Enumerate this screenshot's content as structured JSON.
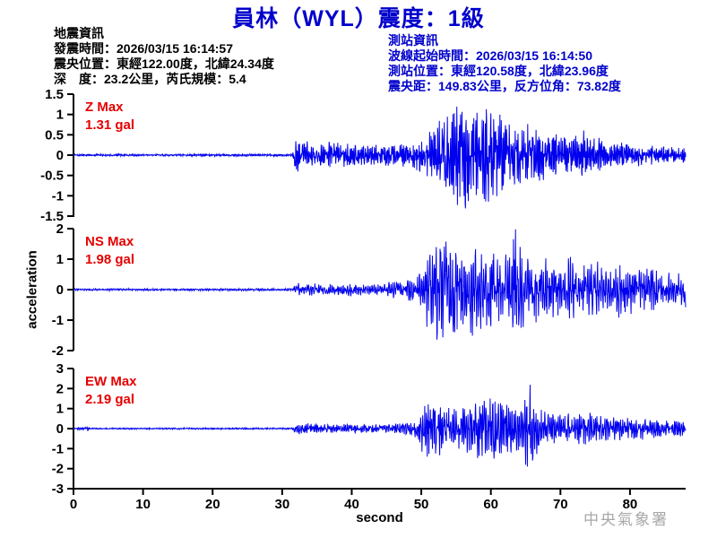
{
  "title": "員林（WYL）震度：1級",
  "event_info": {
    "heading": "地震資訊",
    "lines": [
      "發震時間：2026/03/15 16:14:57",
      "震央位置：東經122.00度，北緯24.34度",
      "深　度：23.2公里，芮氏規模：5.4"
    ]
  },
  "station_info": {
    "heading": "測站資訊",
    "lines": [
      "波線起始時間：2026/03/15 16:14:50",
      "測站位置：東經120.58度，北緯23.96度",
      "震央距：149.83公里，反方位角：73.82度"
    ]
  },
  "watermark": "中央氣象署",
  "colors": {
    "title_blue": "#0000cc",
    "trace_blue": "#0000ee",
    "label_red": "#e60000",
    "axis_black": "#000000",
    "watermark_gray": "#a8a8a8"
  },
  "chart_data": {
    "type": "line",
    "title": "員林（WYL）震度：1級",
    "xlabel": "second",
    "ylabel": "acceleration",
    "x_range": [
      0,
      88
    ],
    "x_ticks": [
      0,
      10,
      20,
      30,
      40,
      50,
      60,
      70,
      80
    ],
    "grid": false,
    "legend": "none",
    "series": [
      {
        "name": "Z",
        "max_label": "Z Max",
        "max_value_label": "1.31 gal",
        "max": 1.31,
        "ylim": [
          -1.5,
          1.5
        ],
        "yticks": [
          1.5,
          1,
          0.5,
          0,
          -0.5,
          -1,
          -1.5
        ],
        "p_arrival_s": 31.5,
        "s_arrival_s": 49.5,
        "envelope": [
          [
            0,
            0.025
          ],
          [
            6,
            0.025
          ],
          [
            6.3,
            0.1
          ],
          [
            6.6,
            0.025
          ],
          [
            31.5,
            0.03
          ],
          [
            31.9,
            0.42
          ],
          [
            34,
            0.3
          ],
          [
            38,
            0.33
          ],
          [
            41,
            0.25
          ],
          [
            45,
            0.25
          ],
          [
            48,
            0.3
          ],
          [
            49.5,
            0.5
          ],
          [
            52,
            0.85
          ],
          [
            54,
            1.05
          ],
          [
            56,
            1.31
          ],
          [
            58,
            1.1
          ],
          [
            60,
            1.2
          ],
          [
            62,
            0.85
          ],
          [
            64,
            0.7
          ],
          [
            66,
            0.75
          ],
          [
            68,
            0.55
          ],
          [
            70,
            0.5
          ],
          [
            73,
            0.62
          ],
          [
            76,
            0.38
          ],
          [
            79,
            0.3
          ],
          [
            82,
            0.25
          ],
          [
            85,
            0.2
          ],
          [
            88,
            0.18
          ]
        ],
        "seed": 12345,
        "freq_hz": 5
      },
      {
        "name": "NS",
        "max_label": "NS Max",
        "max_value_label": "1.98 gal",
        "max": 1.98,
        "ylim": [
          -2,
          2
        ],
        "yticks": [
          2,
          1,
          0,
          -1,
          -2
        ],
        "p_arrival_s": 31.5,
        "s_arrival_s": 49.5,
        "envelope": [
          [
            0,
            0.03
          ],
          [
            31.5,
            0.035
          ],
          [
            32,
            0.2
          ],
          [
            36,
            0.15
          ],
          [
            40,
            0.18
          ],
          [
            44,
            0.15
          ],
          [
            46,
            0.25
          ],
          [
            48,
            0.3
          ],
          [
            49.5,
            0.45
          ],
          [
            51.5,
            1.45
          ],
          [
            53,
            1.5
          ],
          [
            55,
            1.3
          ],
          [
            56.5,
            1.5
          ],
          [
            58,
            1.1
          ],
          [
            60,
            1.25
          ],
          [
            62,
            1.0
          ],
          [
            63.5,
            1.98
          ],
          [
            65,
            0.95
          ],
          [
            67,
            1.0
          ],
          [
            69,
            0.8
          ],
          [
            71,
            0.95
          ],
          [
            73,
            0.7
          ],
          [
            75,
            0.9
          ],
          [
            77,
            0.6
          ],
          [
            79,
            0.85
          ],
          [
            81,
            0.55
          ],
          [
            83,
            0.65
          ],
          [
            85,
            0.45
          ],
          [
            88,
            0.5
          ]
        ],
        "seed": 54321,
        "freq_hz": 3.5
      },
      {
        "name": "EW",
        "max_label": "EW Max",
        "max_value_label": "2.19 gal",
        "max": 2.19,
        "ylim": [
          -3,
          3
        ],
        "yticks": [
          3,
          2,
          1,
          0,
          -1,
          -2,
          -3
        ],
        "p_arrival_s": 31.5,
        "s_arrival_s": 49.5,
        "envelope": [
          [
            0,
            0.035
          ],
          [
            2,
            0.13
          ],
          [
            2.3,
            0.035
          ],
          [
            31.5,
            0.04
          ],
          [
            32,
            0.28
          ],
          [
            36,
            0.2
          ],
          [
            40,
            0.22
          ],
          [
            44,
            0.18
          ],
          [
            47,
            0.25
          ],
          [
            49,
            0.35
          ],
          [
            50.5,
            1.3
          ],
          [
            52,
            1.45
          ],
          [
            54,
            1.1
          ],
          [
            56,
            1.0
          ],
          [
            58,
            1.35
          ],
          [
            60,
            1.6
          ],
          [
            62,
            1.2
          ],
          [
            64,
            1.0
          ],
          [
            65.8,
            2.19
          ],
          [
            67,
            0.9
          ],
          [
            69,
            0.8
          ],
          [
            71,
            0.7
          ],
          [
            74,
            0.78
          ],
          [
            77,
            0.55
          ],
          [
            80,
            0.6
          ],
          [
            83,
            0.45
          ],
          [
            86,
            0.4
          ],
          [
            88,
            0.35
          ]
        ],
        "seed": 99999,
        "freq_hz": 4
      }
    ]
  }
}
